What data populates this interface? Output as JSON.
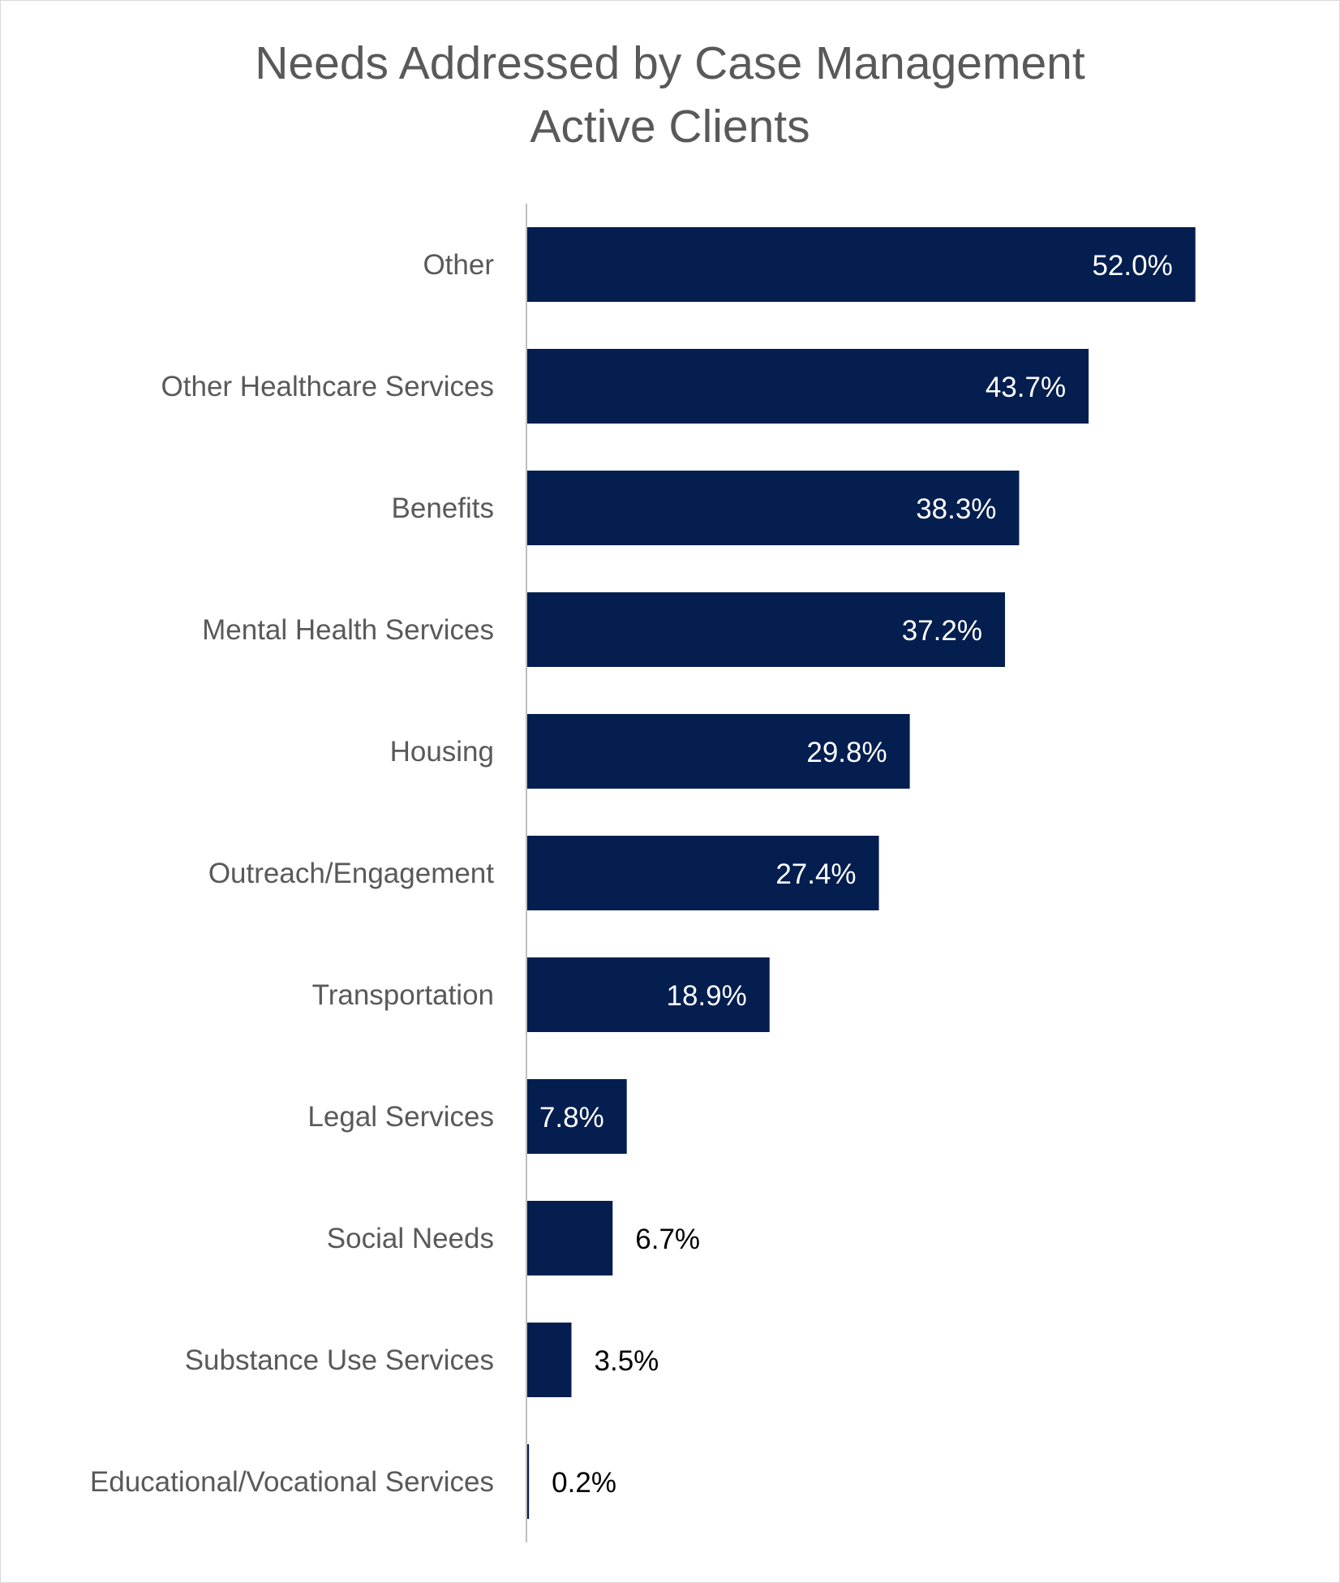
{
  "chart_data": {
    "type": "bar",
    "orientation": "horizontal",
    "title": [
      "Needs Addressed by Case Management",
      "Active Clients"
    ],
    "categories": [
      "Other",
      "Other Healthcare Services",
      "Benefits",
      "Mental Health Services",
      "Housing",
      "Outreach/Engagement",
      "Transportation",
      "Legal Services",
      "Social Needs",
      "Substance Use Services",
      "Educational/Vocational Services"
    ],
    "values": [
      52.0,
      43.7,
      38.3,
      37.2,
      29.8,
      27.4,
      18.9,
      7.8,
      6.7,
      3.5,
      0.2
    ],
    "data_labels": [
      "52.0%",
      "43.7%",
      "38.3%",
      "37.2%",
      "29.8%",
      "27.4%",
      "18.9%",
      "7.8%",
      "6.7%",
      "3.5%",
      "0.2%"
    ],
    "xlim": [
      0,
      55
    ],
    "grid": false,
    "legend": "none",
    "colors": {
      "bar": "#041E4F",
      "text": "#595959",
      "label_inside": "#ffffff",
      "label_outside": "#000000"
    }
  }
}
